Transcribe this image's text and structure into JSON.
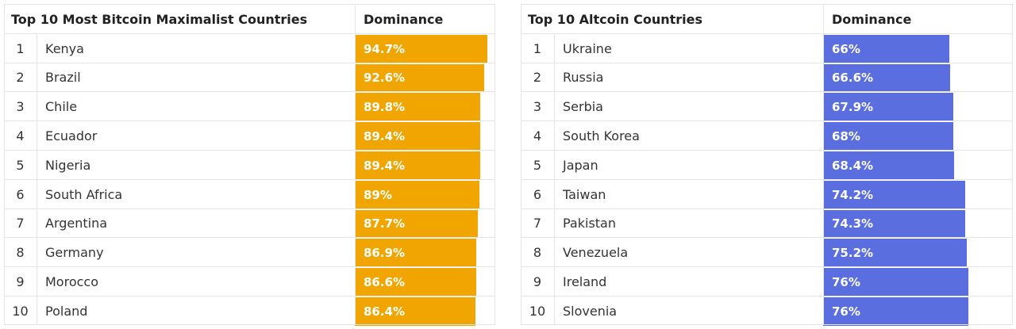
{
  "chart_data": [
    {
      "type": "table",
      "title": "Top 10 Most Bitcoin Maximalist Countries",
      "column_header": "Dominance",
      "bar_color": "#f0a500",
      "value_range": [
        0,
        100
      ],
      "rows": [
        {
          "rank": "1",
          "country": "Kenya",
          "value": 94.7,
          "label": "94.7%"
        },
        {
          "rank": "2",
          "country": "Brazil",
          "value": 92.6,
          "label": "92.6%"
        },
        {
          "rank": "3",
          "country": "Chile",
          "value": 89.8,
          "label": "89.8%"
        },
        {
          "rank": "4",
          "country": "Ecuador",
          "value": 89.4,
          "label": "89.4%"
        },
        {
          "rank": "5",
          "country": "Nigeria",
          "value": 89.4,
          "label": "89.4%"
        },
        {
          "rank": "6",
          "country": "South Africa",
          "value": 89,
          "label": "89%"
        },
        {
          "rank": "7",
          "country": "Argentina",
          "value": 87.7,
          "label": "87.7%"
        },
        {
          "rank": "8",
          "country": "Germany",
          "value": 86.9,
          "label": "86.9%"
        },
        {
          "rank": "9",
          "country": "Morocco",
          "value": 86.6,
          "label": "86.6%"
        },
        {
          "rank": "10",
          "country": "Poland",
          "value": 86.4,
          "label": "86.4%"
        }
      ]
    },
    {
      "type": "table",
      "title": "Top 10 Altcoin Countries",
      "column_header": "Dominance",
      "bar_color": "#5b6ee0",
      "value_range": [
        0,
        100
      ],
      "rows": [
        {
          "rank": "1",
          "country": "Ukraine",
          "value": 66,
          "label": "66%"
        },
        {
          "rank": "2",
          "country": "Russia",
          "value": 66.6,
          "label": "66.6%"
        },
        {
          "rank": "3",
          "country": "Serbia",
          "value": 67.9,
          "label": "67.9%"
        },
        {
          "rank": "4",
          "country": "South Korea",
          "value": 68,
          "label": "68%"
        },
        {
          "rank": "5",
          "country": "Japan",
          "value": 68.4,
          "label": "68.4%"
        },
        {
          "rank": "6",
          "country": "Taiwan",
          "value": 74.2,
          "label": "74.2%"
        },
        {
          "rank": "7",
          "country": "Pakistan",
          "value": 74.3,
          "label": "74.3%"
        },
        {
          "rank": "8",
          "country": "Venezuela",
          "value": 75.2,
          "label": "75.2%"
        },
        {
          "rank": "9",
          "country": "Ireland",
          "value": 76,
          "label": "76%"
        },
        {
          "rank": "10",
          "country": "Slovenia",
          "value": 76,
          "label": "76%"
        }
      ]
    }
  ]
}
